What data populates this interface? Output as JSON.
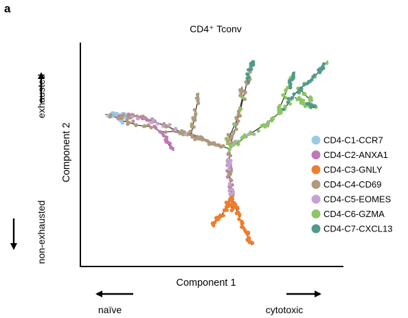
{
  "panel_label": "a",
  "chart_data": {
    "type": "scatter",
    "title": "CD4⁺ Tconv",
    "xlabel": "Component 1",
    "ylabel": "Component 2",
    "annotations": {
      "y_up": "exhausted",
      "y_down": "non-exhausted",
      "x_left": "naïve",
      "x_right": "cytotoxic"
    },
    "legend_position": "right",
    "grid": false,
    "axes_ticks": false,
    "trajectory_tree": {
      "edges": [
        [
          [
            0.57,
            0.53
          ],
          [
            0.4,
            0.6
          ],
          [
            0.22,
            0.68
          ],
          [
            0.08,
            0.69
          ]
        ],
        [
          [
            0.1,
            0.69
          ],
          [
            0.15,
            0.66
          ],
          [
            0.21,
            0.64
          ],
          [
            0.27,
            0.63
          ]
        ],
        [
          [
            0.27,
            0.63
          ],
          [
            0.31,
            0.6
          ],
          [
            0.33,
            0.55
          ],
          [
            0.35,
            0.52
          ]
        ],
        [
          [
            0.3,
            0.61
          ],
          [
            0.35,
            0.61
          ],
          [
            0.42,
            0.6
          ],
          [
            0.48,
            0.57
          ]
        ],
        [
          [
            0.42,
            0.6
          ],
          [
            0.43,
            0.66
          ],
          [
            0.44,
            0.72
          ],
          [
            0.45,
            0.79
          ]
        ],
        [
          [
            0.56,
            0.56
          ],
          [
            0.61,
            0.69
          ],
          [
            0.64,
            0.84
          ],
          [
            0.66,
            0.94
          ]
        ],
        [
          [
            0.57,
            0.53
          ],
          [
            0.6,
            0.65
          ],
          [
            0.62,
            0.76
          ],
          [
            0.62,
            0.82
          ]
        ],
        [
          [
            0.57,
            0.53
          ],
          [
            0.64,
            0.59
          ],
          [
            0.72,
            0.65
          ],
          [
            0.79,
            0.72
          ],
          [
            0.84,
            0.8
          ],
          [
            0.91,
            0.87
          ],
          [
            0.96,
            0.94
          ]
        ],
        [
          [
            0.76,
            0.69
          ],
          [
            0.79,
            0.78
          ],
          [
            0.83,
            0.89
          ]
        ],
        [
          [
            0.83,
            0.77
          ],
          [
            0.87,
            0.74
          ],
          [
            0.91,
            0.72
          ]
        ],
        [
          [
            0.85,
            0.81
          ],
          [
            0.88,
            0.77
          ],
          [
            0.9,
            0.76
          ]
        ],
        [
          [
            0.57,
            0.53
          ],
          [
            0.57,
            0.42
          ],
          [
            0.58,
            0.31
          ],
          [
            0.58,
            0.25
          ]
        ],
        [
          [
            0.58,
            0.3
          ],
          [
            0.54,
            0.22
          ],
          [
            0.5,
            0.18
          ]
        ],
        [
          [
            0.58,
            0.3
          ],
          [
            0.62,
            0.18
          ],
          [
            0.66,
            0.08
          ]
        ]
      ]
    },
    "clusters": [
      {
        "name": "CD4-C1-CCR7",
        "color": "#9ec9e2",
        "regions": [
          {
            "edge": 0,
            "t": [
              0.82,
              1.0
            ],
            "n": 26
          },
          {
            "edge": 1,
            "t": [
              0.0,
              0.35
            ],
            "n": 10
          }
        ]
      },
      {
        "name": "CD4-C2-ANXA1",
        "color": "#c178b8",
        "regions": [
          {
            "edge": 2,
            "t": [
              0.0,
              1.0
            ],
            "n": 16
          },
          {
            "edge": 0,
            "t": [
              0.62,
              0.92
            ],
            "n": 14
          },
          {
            "edge": 11,
            "t": [
              0.0,
              0.75
            ],
            "n": 12
          }
        ]
      },
      {
        "name": "CD4-C3-GNLY",
        "color": "#ee7d2d",
        "regions": [
          {
            "edge": 11,
            "t": [
              0.78,
              1.0
            ],
            "n": 12
          },
          {
            "edge": 12,
            "t": [
              0.0,
              1.0
            ],
            "n": 24
          },
          {
            "edge": 13,
            "t": [
              0.0,
              1.0
            ],
            "n": 40
          }
        ]
      },
      {
        "name": "CD4-C4-CD69",
        "color": "#b09a7c",
        "regions": [
          {
            "edge": 0,
            "t": [
              0.0,
              0.9
            ],
            "n": 40
          },
          {
            "edge": 1,
            "t": [
              0.0,
              1.0
            ],
            "n": 14
          },
          {
            "edge": 3,
            "t": [
              0.0,
              1.0
            ],
            "n": 18
          },
          {
            "edge": 4,
            "t": [
              0.0,
              1.0
            ],
            "n": 18
          },
          {
            "edge": 5,
            "t": [
              0.0,
              1.0
            ],
            "n": 28
          },
          {
            "edge": 6,
            "t": [
              0.0,
              1.0
            ],
            "n": 20
          },
          {
            "edge": 11,
            "t": [
              0.0,
              0.8
            ],
            "n": 20
          }
        ]
      },
      {
        "name": "CD4-C5-EOMES",
        "color": "#c4a3d4",
        "regions": [
          {
            "edge": 11,
            "t": [
              0.1,
              0.8
            ],
            "n": 14
          },
          {
            "edge": 7,
            "t": [
              0.0,
              0.5
            ],
            "n": 10
          },
          {
            "edge": 0,
            "t": [
              0.3,
              0.9
            ],
            "n": 10
          }
        ]
      },
      {
        "name": "CD4-C6-GZMA",
        "color": "#8cc665",
        "regions": [
          {
            "edge": 7,
            "t": [
              0.0,
              1.0
            ],
            "n": 44
          },
          {
            "edge": 8,
            "t": [
              0.0,
              1.0
            ],
            "n": 18
          },
          {
            "edge": 9,
            "t": [
              0.0,
              1.0
            ],
            "n": 12
          },
          {
            "edge": 10,
            "t": [
              0.0,
              1.0
            ],
            "n": 10
          },
          {
            "edge": 5,
            "t": [
              0.0,
              1.0
            ],
            "n": 10
          }
        ]
      },
      {
        "name": "CD4-C7-CXCL13",
        "color": "#519a8e",
        "regions": [
          {
            "edge": 7,
            "t": [
              0.5,
              1.0
            ],
            "n": 26
          },
          {
            "edge": 8,
            "t": [
              0.6,
              1.0
            ],
            "n": 10
          },
          {
            "edge": 9,
            "t": [
              0.6,
              1.0
            ],
            "n": 8
          },
          {
            "edge": 5,
            "t": [
              0.75,
              1.0
            ],
            "n": 12
          }
        ]
      }
    ]
  }
}
